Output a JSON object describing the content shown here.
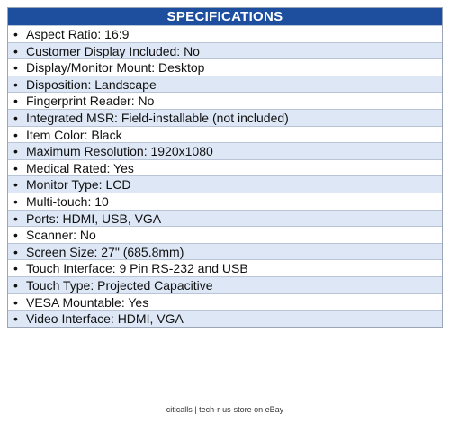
{
  "header": {
    "title": "SPECIFICATIONS"
  },
  "items": [
    "Aspect Ratio: 16:9",
    "Customer Display Included: No",
    "Display/Monitor Mount: Desktop",
    "Disposition: Landscape",
    "Fingerprint Reader: No",
    "Integrated MSR: Field-installable (not included)",
    "Item Color: Black",
    "Maximum Resolution: 1920x1080",
    "Medical Rated: Yes",
    "Monitor Type: LCD",
    "Multi-touch: 10",
    "Ports: HDMI, USB, VGA",
    "Scanner: No",
    "Screen Size: 27\" (685.8mm)",
    "Touch Interface: 9 Pin RS-232 and USB",
    "Touch Type: Projected Capacitive",
    "VESA Mountable: Yes",
    "Video Interface: HDMI, VGA"
  ],
  "footer": "citicalls | tech-r-us-store on eBay"
}
